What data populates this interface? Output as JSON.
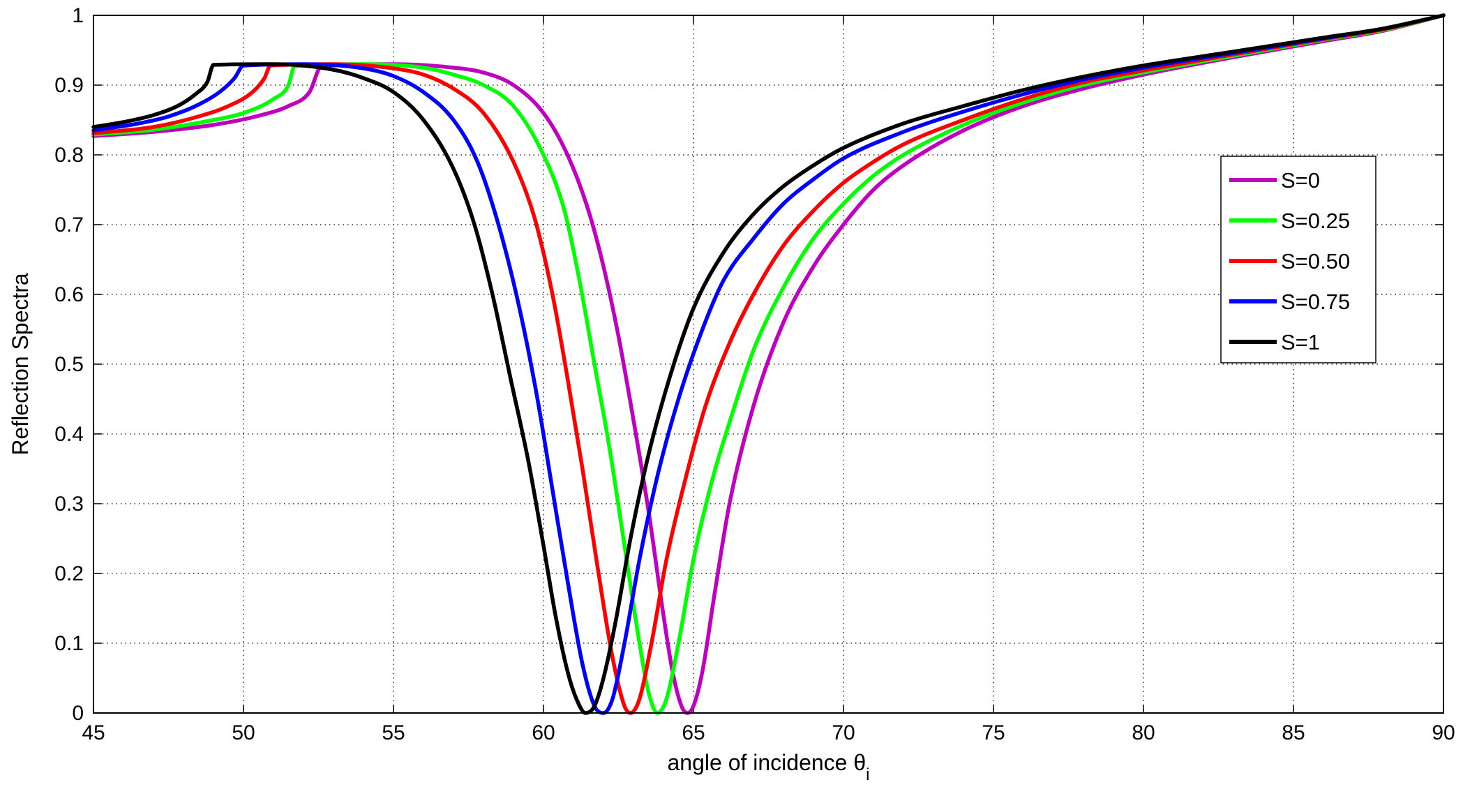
{
  "chart_data": {
    "type": "line",
    "title": "",
    "xlabel": "angle of incidence",
    "xlabel_symbol": "θ",
    "xlabel_subscript": "i",
    "ylabel": "Reflection Spectra",
    "xlim": [
      45,
      90
    ],
    "ylim": [
      0,
      1
    ],
    "xticks": [
      45,
      50,
      55,
      60,
      65,
      70,
      75,
      80,
      85,
      90
    ],
    "yticks": [
      0,
      0.1,
      0.2,
      0.3,
      0.4,
      0.5,
      0.6,
      0.7,
      0.8,
      0.9,
      1
    ],
    "xtick_labels": [
      "45",
      "50",
      "55",
      "60",
      "65",
      "70",
      "75",
      "80",
      "85",
      "90"
    ],
    "ytick_labels": [
      "0",
      "0.1",
      "0.2",
      "0.3",
      "0.4",
      "0.5",
      "0.6",
      "0.7",
      "0.8",
      "0.9",
      "1"
    ],
    "grid": true,
    "legend_position": "right",
    "series": [
      {
        "name": "S=0",
        "color": "#BF00BF",
        "points": [
          [
            45,
            0.827
          ],
          [
            47,
            0.833
          ],
          [
            49,
            0.843
          ],
          [
            50.5,
            0.856
          ],
          [
            51.5,
            0.87
          ],
          [
            52.2,
            0.89
          ],
          [
            52.6,
            0.927
          ],
          [
            55,
            0.93
          ],
          [
            57,
            0.925
          ],
          [
            58,
            0.918
          ],
          [
            59,
            0.9
          ],
          [
            60,
            0.86
          ],
          [
            60.8,
            0.8
          ],
          [
            61.5,
            0.72
          ],
          [
            62,
            0.64
          ],
          [
            62.5,
            0.54
          ],
          [
            63,
            0.42
          ],
          [
            63.5,
            0.29
          ],
          [
            64,
            0.14
          ],
          [
            64.3,
            0.06
          ],
          [
            64.6,
            0.01
          ],
          [
            64.8,
            0
          ],
          [
            65,
            0.01
          ],
          [
            65.3,
            0.06
          ],
          [
            65.7,
            0.17
          ],
          [
            66.2,
            0.3
          ],
          [
            67,
            0.44
          ],
          [
            68,
            0.56
          ],
          [
            69,
            0.64
          ],
          [
            70,
            0.7
          ],
          [
            71,
            0.75
          ],
          [
            72,
            0.785
          ],
          [
            74,
            0.835
          ],
          [
            76,
            0.87
          ],
          [
            78,
            0.895
          ],
          [
            80,
            0.915
          ],
          [
            83,
            0.94
          ],
          [
            86,
            0.963
          ],
          [
            88,
            0.978
          ],
          [
            90,
            1.0
          ]
        ]
      },
      {
        "name": "S=0.25",
        "color": "#00FF00",
        "points": [
          [
            45,
            0.829
          ],
          [
            47,
            0.836
          ],
          [
            49,
            0.85
          ],
          [
            50,
            0.86
          ],
          [
            51,
            0.88
          ],
          [
            51.5,
            0.9
          ],
          [
            51.7,
            0.927
          ],
          [
            54,
            0.93
          ],
          [
            56,
            0.925
          ],
          [
            57,
            0.915
          ],
          [
            58,
            0.9
          ],
          [
            59,
            0.87
          ],
          [
            60,
            0.8
          ],
          [
            60.7,
            0.72
          ],
          [
            61.2,
            0.62
          ],
          [
            61.7,
            0.5
          ],
          [
            62.2,
            0.38
          ],
          [
            62.7,
            0.24
          ],
          [
            63.2,
            0.1
          ],
          [
            63.5,
            0.03
          ],
          [
            63.8,
            0
          ],
          [
            64.1,
            0.02
          ],
          [
            64.5,
            0.1
          ],
          [
            65,
            0.22
          ],
          [
            65.6,
            0.33
          ],
          [
            66.3,
            0.43
          ],
          [
            67,
            0.52
          ],
          [
            68,
            0.61
          ],
          [
            69,
            0.68
          ],
          [
            70,
            0.73
          ],
          [
            71,
            0.77
          ],
          [
            72,
            0.8
          ],
          [
            74,
            0.843
          ],
          [
            76,
            0.875
          ],
          [
            78,
            0.9
          ],
          [
            80,
            0.918
          ],
          [
            83,
            0.942
          ],
          [
            86,
            0.965
          ],
          [
            88,
            0.979
          ],
          [
            90,
            1.0
          ]
        ]
      },
      {
        "name": "S=0.50",
        "color": "#FF0000",
        "points": [
          [
            45,
            0.831
          ],
          [
            47,
            0.84
          ],
          [
            48.5,
            0.855
          ],
          [
            49.5,
            0.87
          ],
          [
            50.3,
            0.89
          ],
          [
            50.7,
            0.91
          ],
          [
            50.9,
            0.928
          ],
          [
            53,
            0.93
          ],
          [
            55,
            0.924
          ],
          [
            56,
            0.915
          ],
          [
            57,
            0.895
          ],
          [
            58,
            0.86
          ],
          [
            59,
            0.79
          ],
          [
            59.7,
            0.71
          ],
          [
            60.3,
            0.6
          ],
          [
            60.8,
            0.48
          ],
          [
            61.3,
            0.35
          ],
          [
            61.8,
            0.21
          ],
          [
            62.3,
            0.08
          ],
          [
            62.7,
            0.01
          ],
          [
            62.9,
            0
          ],
          [
            63.2,
            0.02
          ],
          [
            63.6,
            0.1
          ],
          [
            64.1,
            0.22
          ],
          [
            64.7,
            0.33
          ],
          [
            65.4,
            0.44
          ],
          [
            66.2,
            0.53
          ],
          [
            67,
            0.6
          ],
          [
            68,
            0.67
          ],
          [
            69,
            0.72
          ],
          [
            70,
            0.76
          ],
          [
            71,
            0.79
          ],
          [
            72,
            0.815
          ],
          [
            74,
            0.85
          ],
          [
            76,
            0.88
          ],
          [
            78,
            0.904
          ],
          [
            80,
            0.921
          ],
          [
            83,
            0.944
          ],
          [
            86,
            0.966
          ],
          [
            88,
            0.98
          ],
          [
            90,
            1.0
          ]
        ]
      },
      {
        "name": "S=0.75",
        "color": "#0000FF",
        "points": [
          [
            45,
            0.835
          ],
          [
            46.5,
            0.845
          ],
          [
            47.5,
            0.855
          ],
          [
            48.5,
            0.872
          ],
          [
            49.2,
            0.89
          ],
          [
            49.7,
            0.91
          ],
          [
            50,
            0.928
          ],
          [
            52,
            0.93
          ],
          [
            54,
            0.924
          ],
          [
            55,
            0.913
          ],
          [
            56,
            0.89
          ],
          [
            57,
            0.85
          ],
          [
            57.8,
            0.79
          ],
          [
            58.5,
            0.7
          ],
          [
            59.2,
            0.58
          ],
          [
            59.8,
            0.45
          ],
          [
            60.3,
            0.32
          ],
          [
            60.8,
            0.19
          ],
          [
            61.3,
            0.07
          ],
          [
            61.7,
            0.01
          ],
          [
            62,
            0
          ],
          [
            62.3,
            0.02
          ],
          [
            62.7,
            0.1
          ],
          [
            63.2,
            0.22
          ],
          [
            63.8,
            0.34
          ],
          [
            64.5,
            0.45
          ],
          [
            65.3,
            0.55
          ],
          [
            66,
            0.62
          ],
          [
            67,
            0.68
          ],
          [
            68,
            0.73
          ],
          [
            69,
            0.765
          ],
          [
            70,
            0.795
          ],
          [
            72,
            0.833
          ],
          [
            74,
            0.862
          ],
          [
            76,
            0.887
          ],
          [
            78,
            0.908
          ],
          [
            80,
            0.925
          ],
          [
            83,
            0.946
          ],
          [
            86,
            0.967
          ],
          [
            88,
            0.981
          ],
          [
            90,
            1.0
          ]
        ]
      },
      {
        "name": "S=1",
        "color": "#000000",
        "points": [
          [
            45,
            0.84
          ],
          [
            46,
            0.847
          ],
          [
            47,
            0.857
          ],
          [
            47.8,
            0.87
          ],
          [
            48.4,
            0.887
          ],
          [
            48.8,
            0.905
          ],
          [
            49,
            0.929
          ],
          [
            51,
            0.93
          ],
          [
            53,
            0.922
          ],
          [
            54,
            0.91
          ],
          [
            55,
            0.89
          ],
          [
            56,
            0.85
          ],
          [
            57,
            0.78
          ],
          [
            57.7,
            0.7
          ],
          [
            58.3,
            0.6
          ],
          [
            58.9,
            0.48
          ],
          [
            59.5,
            0.36
          ],
          [
            60,
            0.24
          ],
          [
            60.4,
            0.14
          ],
          [
            60.8,
            0.06
          ],
          [
            61.1,
            0.02
          ],
          [
            61.4,
            0
          ],
          [
            61.7,
            0.01
          ],
          [
            62,
            0.05
          ],
          [
            62.4,
            0.13
          ],
          [
            62.9,
            0.25
          ],
          [
            63.5,
            0.37
          ],
          [
            64.2,
            0.48
          ],
          [
            65,
            0.58
          ],
          [
            66,
            0.66
          ],
          [
            67,
            0.715
          ],
          [
            68,
            0.755
          ],
          [
            69,
            0.785
          ],
          [
            70,
            0.81
          ],
          [
            72,
            0.845
          ],
          [
            74,
            0.87
          ],
          [
            76,
            0.893
          ],
          [
            78,
            0.912
          ],
          [
            80,
            0.928
          ],
          [
            83,
            0.948
          ],
          [
            86,
            0.968
          ],
          [
            88,
            0.981
          ],
          [
            90,
            1.0
          ]
        ]
      }
    ]
  }
}
